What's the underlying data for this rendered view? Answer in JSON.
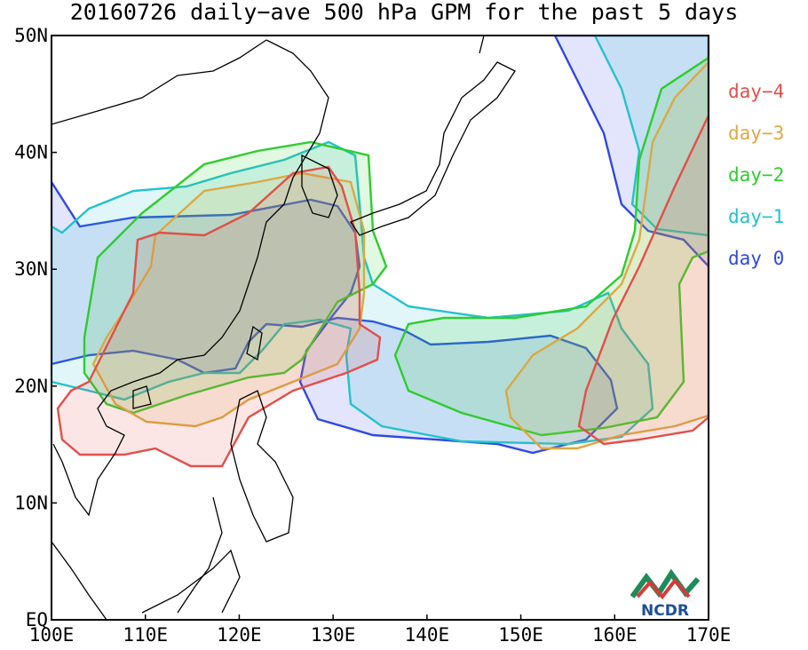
{
  "title": "20160726 daily−ave 500 hPa GPM for the past 5 days",
  "map": {
    "lat_labels": [
      "50N",
      "40N",
      "30N",
      "20N",
      "10N",
      "EQ"
    ],
    "lon_labels": [
      "100E",
      "110E",
      "120E",
      "130E",
      "140E",
      "150E",
      "160E",
      "170E"
    ],
    "legend": [
      {
        "label": "day−4",
        "color": "#e0504a"
      },
      {
        "label": "day−3",
        "color": "#dca845"
      },
      {
        "label": "day−2",
        "color": "#2ecc2e"
      },
      {
        "label": "day−1",
        "color": "#22c2cc"
      },
      {
        "label": "day 0",
        "color": "#3048e0"
      }
    ],
    "logo": "NCDR"
  }
}
